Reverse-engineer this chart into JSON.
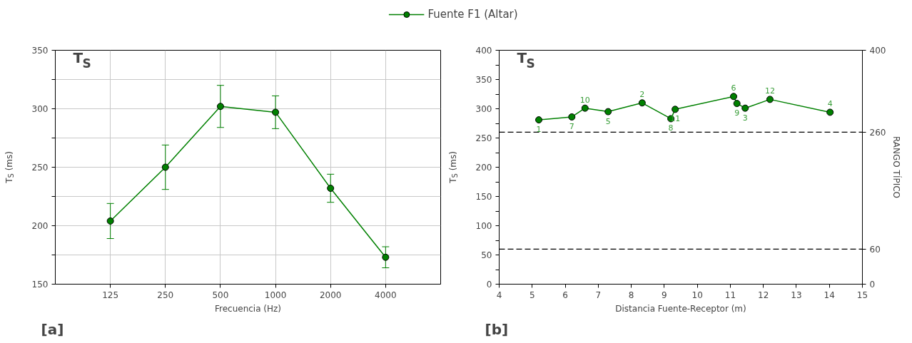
{
  "chart_data": [
    {
      "type": "line",
      "categories": [
        "125",
        "250",
        "500",
        "1000",
        "2000",
        "4000"
      ],
      "series": [
        {
          "name": "Fuente F1 (Altar)",
          "color": "#008000",
          "values": [
            204,
            250,
            302,
            297,
            232,
            173
          ],
          "errors": [
            [
              189,
              219
            ],
            [
              231,
              269
            ],
            [
              284,
              320
            ],
            [
              283,
              311
            ],
            [
              220,
              244
            ],
            [
              164,
              182
            ]
          ]
        }
      ],
      "ylim": [
        150,
        350
      ],
      "yticks": [
        150,
        {
          "value": 175,
          "label": null
        },
        200,
        {
          "value": 225,
          "label": null
        },
        250,
        {
          "value": 275,
          "label": null
        },
        300,
        {
          "value": 325,
          "label": null
        },
        350
      ],
      "xlabel": "Frecuencia (Hz)",
      "ylabel": "T$_{S}$ (ms)",
      "annotations": [
        "T$_{S}$",
        "[a]"
      ],
      "grid": true,
      "legend": "top",
      "marker": "circle",
      "line_style": "solid"
    },
    {
      "type": "line",
      "x": [
        5.2,
        6.2,
        6.6,
        7.3,
        8.33,
        9.2,
        9.33,
        11.1,
        11.2,
        11.45,
        12.2,
        14.02
      ],
      "series": [
        {
          "color": "#008000",
          "values": [
            281,
            286,
            301,
            295,
            310,
            283,
            299,
            321,
            309,
            301,
            316,
            294
          ]
        }
      ],
      "xlim": [
        4,
        15
      ],
      "xticks": [
        4,
        5,
        6,
        7,
        8,
        9,
        10,
        11,
        12,
        13,
        14,
        15
      ],
      "ylim": [
        0,
        400
      ],
      "yticks": [
        0,
        {
          "value": 25,
          "label": null
        },
        50,
        {
          "value": 75,
          "label": null
        },
        100,
        {
          "value": 125,
          "label": null
        },
        150,
        {
          "value": 175,
          "label": null
        },
        200,
        {
          "value": 225,
          "label": null
        },
        250,
        {
          "value": 275,
          "label": null
        },
        300,
        {
          "value": 325,
          "label": null
        },
        350,
        {
          "value": 375,
          "label": null
        },
        400
      ],
      "y2lim": [
        0,
        400
      ],
      "y2ticks": [
        0,
        60,
        260,
        400
      ],
      "ref_lines": [
        {
          "axis": "y",
          "value": 260,
          "color": "#000000",
          "line_style": "dashed"
        },
        {
          "axis": "y",
          "value": 60,
          "color": "#000000",
          "line_style": "dashed"
        }
      ],
      "xlabel": "Distancia Fuente-Receptor (m)",
      "ylabel": "T$_{S}$ (ms)",
      "y2label": "RANGO TÍPICO",
      "annotations": [
        "T$_{S}$",
        "[b]",
        {
          "text": "1",
          "x": 5.2,
          "y": 281
        },
        {
          "text": "7",
          "x": 6.2,
          "y": 286
        },
        {
          "text": "10",
          "x": 6.6,
          "y": 301
        },
        {
          "text": "5",
          "x": 7.3,
          "y": 295
        },
        {
          "text": "2",
          "x": 8.33,
          "y": 310
        },
        {
          "text": "8",
          "x": 9.2,
          "y": 283
        },
        {
          "text": "11",
          "x": 9.33,
          "y": 299
        },
        {
          "text": "6",
          "x": 11.1,
          "y": 321
        },
        {
          "text": "9",
          "x": 11.2,
          "y": 309
        },
        {
          "text": "3",
          "x": 11.45,
          "y": 301
        },
        {
          "text": "12",
          "x": 12.2,
          "y": 316
        },
        {
          "text": "4",
          "x": 14.02,
          "y": 294
        }
      ],
      "grid": false,
      "marker": "circle",
      "line_style": "solid"
    }
  ]
}
